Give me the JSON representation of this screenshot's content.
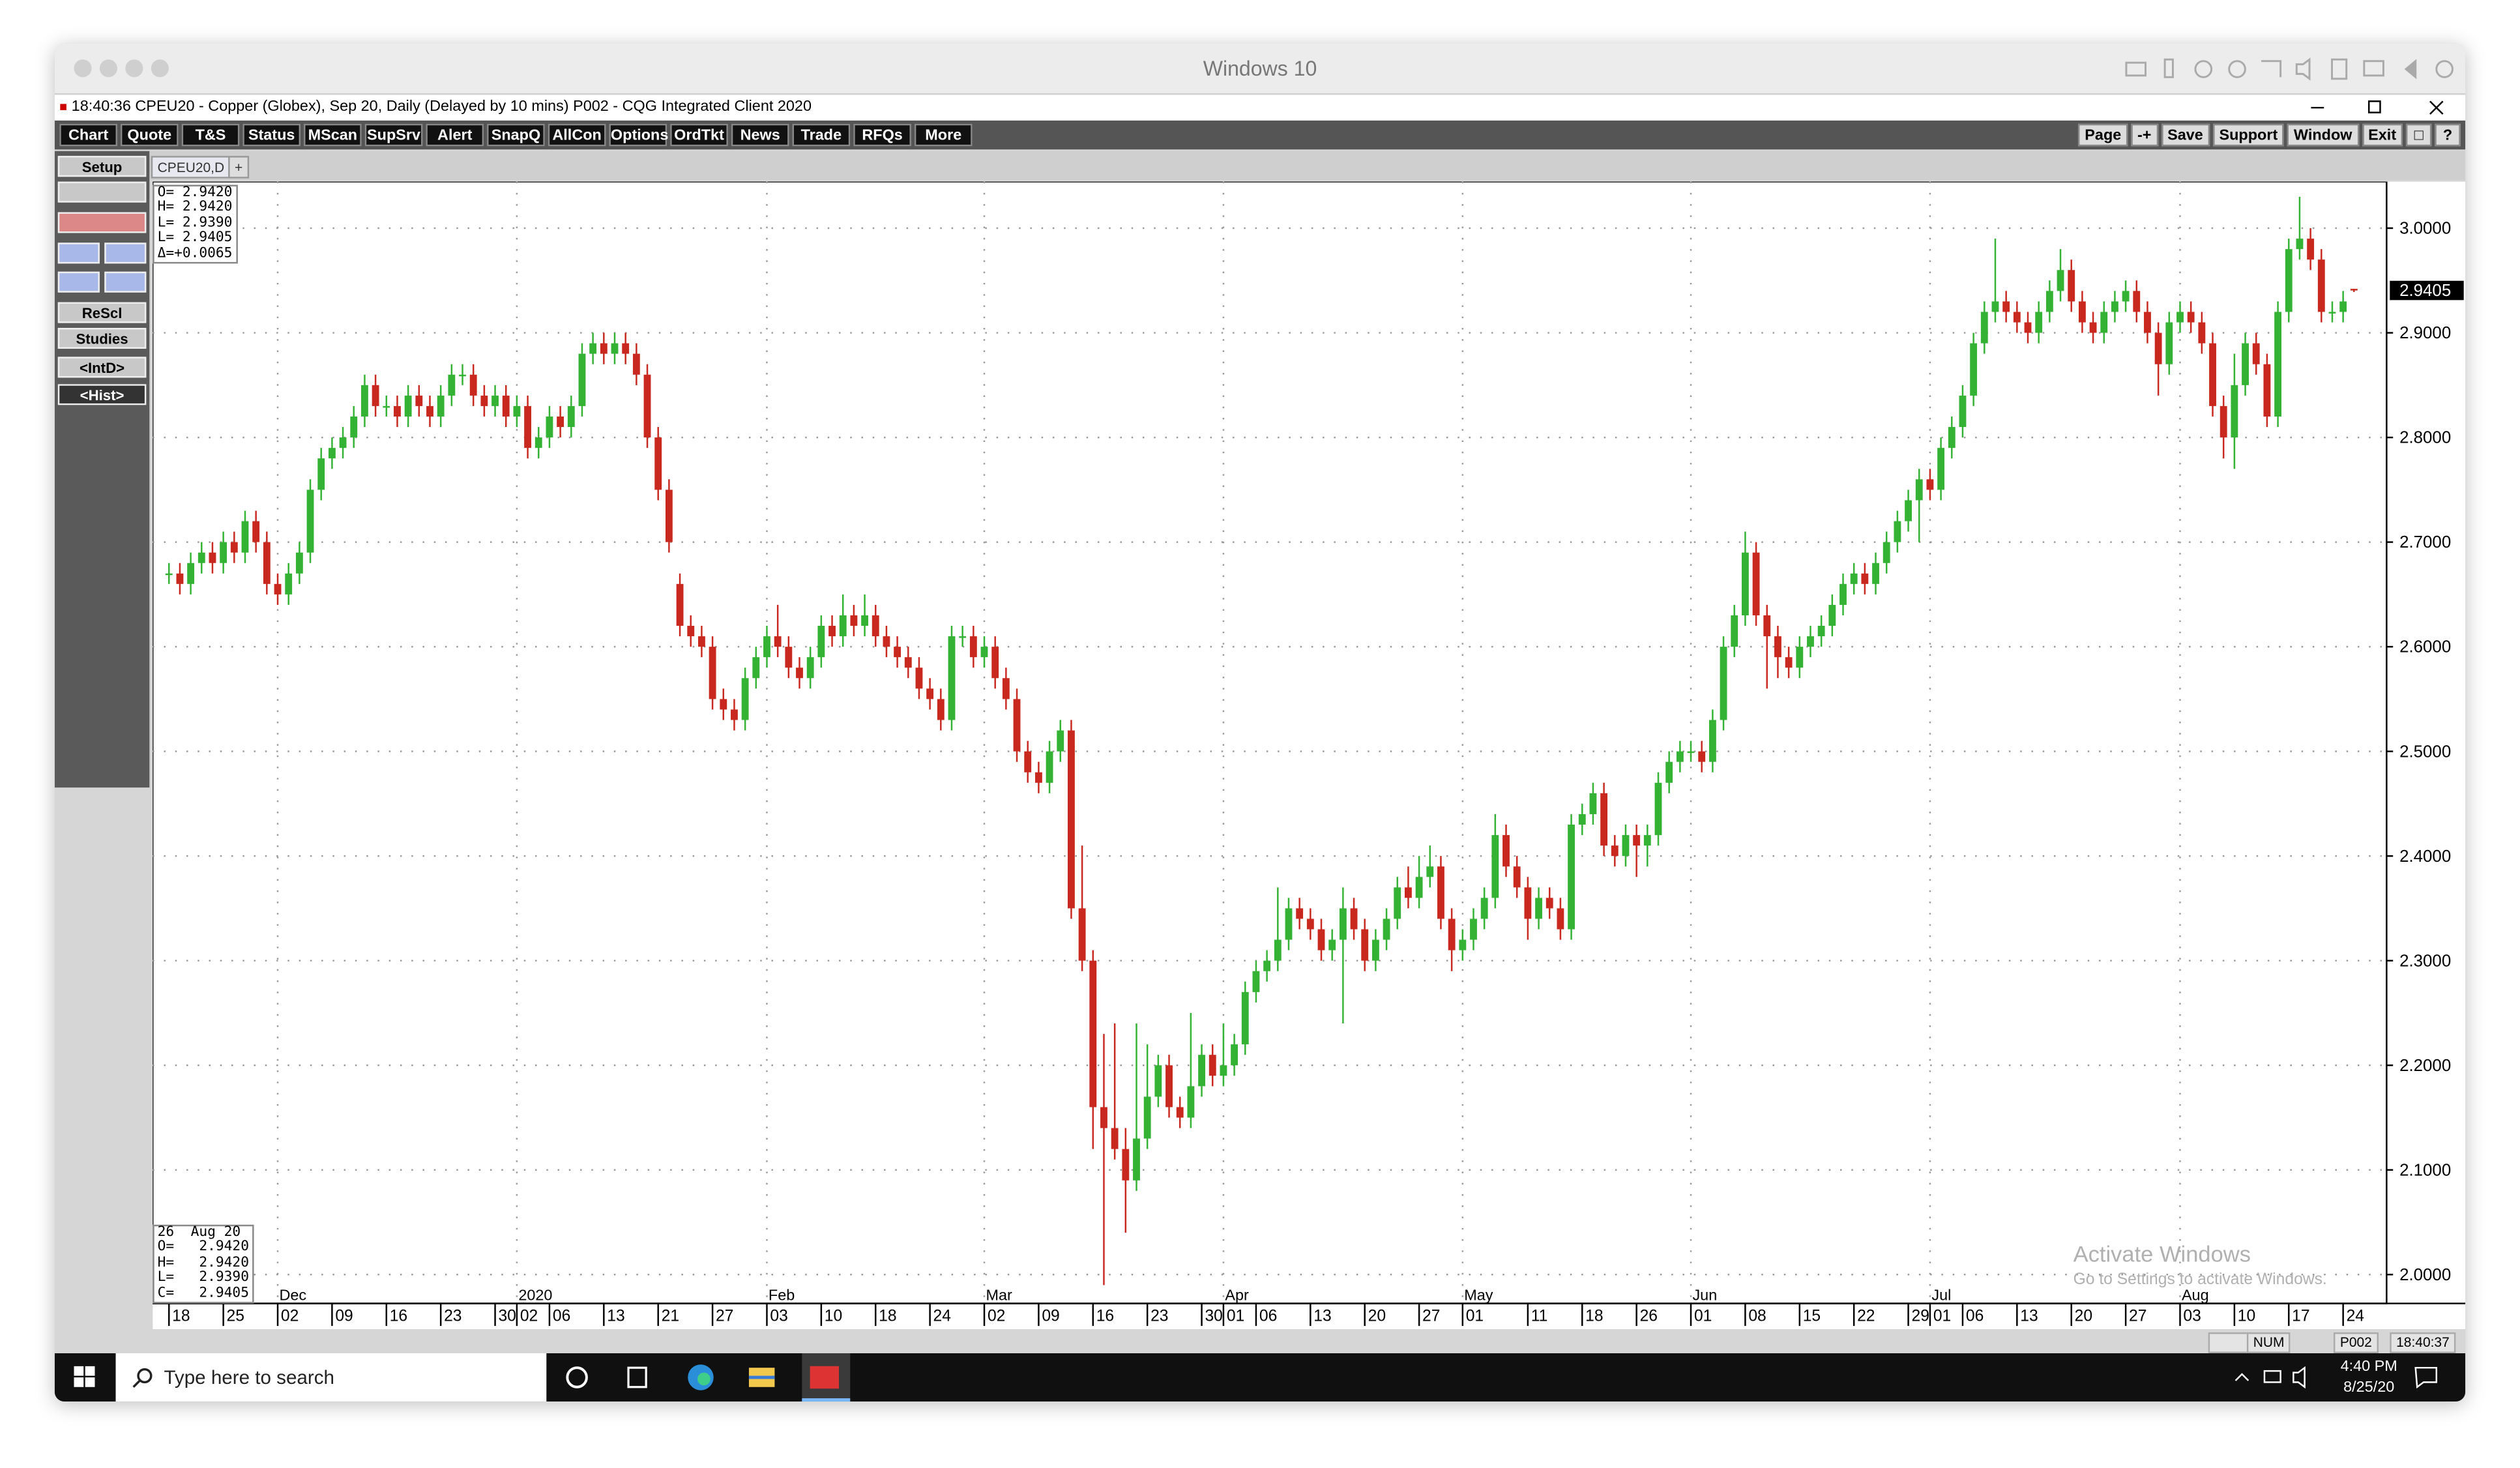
{
  "window": {
    "title": "Windows 10"
  },
  "app": {
    "title": "18:40:36  CPEU20 - Copper (Globex), Sep 20, Daily (Delayed by 10 mins)   P002 - CQG Integrated Client 2020"
  },
  "toolbar": {
    "left": [
      "Chart",
      "Quote",
      "T&S",
      "Status",
      "MScan",
      "SupSrv",
      "Alert",
      "SnapQ",
      "AllCon",
      "Options",
      "OrdTkt",
      "News",
      "Trade",
      "RFQs",
      "More"
    ],
    "right": [
      "Page",
      "-+",
      "Save",
      "Support",
      "Window",
      "Exit"
    ]
  },
  "tabs": [
    "CPEU20,D",
    "+"
  ],
  "side_buttons": [
    "Setup",
    "ReScl",
    "Studies",
    "<IntD>",
    "<Hist>"
  ],
  "readout_top": [
    "O= 2.9420",
    "H= 2.9420",
    "L= 2.9390",
    "L= 2.9405",
    "Δ=+0.0065"
  ],
  "readout_bottom": [
    "26  Aug 20",
    "O=   2.9420",
    "H=   2.9420",
    "L=   2.9390",
    "C=   2.9405"
  ],
  "chart_data": {
    "type": "candlestick",
    "open": [
      2.67,
      2.67,
      2.66,
      2.68,
      2.69,
      2.68,
      2.7,
      2.69,
      2.72,
      2.7,
      2.66,
      2.65,
      2.67,
      2.69,
      2.75,
      2.78,
      2.79,
      2.8,
      2.82,
      2.85,
      2.83,
      2.83,
      2.82,
      2.84,
      2.83,
      2.82,
      2.84,
      2.86,
      2.86,
      2.84,
      2.83,
      2.84,
      2.82,
      2.83,
      2.79,
      2.8,
      2.82,
      2.81,
      2.83,
      2.88,
      2.89,
      2.88,
      2.89,
      2.88,
      2.86,
      2.8,
      2.75,
      2.66,
      2.62,
      2.61,
      2.6,
      2.55,
      2.54,
      2.53,
      2.57,
      2.59,
      2.61,
      2.6,
      2.58,
      2.57,
      2.59,
      2.62,
      2.61,
      2.63,
      2.62,
      2.63,
      2.61,
      2.6,
      2.59,
      2.58,
      2.56,
      2.55,
      2.53,
      2.61,
      2.61,
      2.59,
      2.6,
      2.57,
      2.55,
      2.5,
      2.48,
      2.47,
      2.5,
      2.52,
      2.35,
      2.3,
      2.16,
      2.14,
      2.12,
      2.09,
      2.13,
      2.17,
      2.2,
      2.16,
      2.15,
      2.18,
      2.21,
      2.19,
      2.2,
      2.22,
      2.27,
      2.29,
      2.3,
      2.32,
      2.35,
      2.34,
      2.33,
      2.31,
      2.32,
      2.35,
      2.33,
      2.3,
      2.32,
      2.34,
      2.37,
      2.36,
      2.38,
      2.39,
      2.34,
      2.31,
      2.32,
      2.34,
      2.36,
      2.42,
      2.39,
      2.37,
      2.34,
      2.36,
      2.35,
      2.33,
      2.43,
      2.44,
      2.46,
      2.41,
      2.4,
      2.42,
      2.41,
      2.42,
      2.47,
      2.49,
      2.5,
      2.5,
      2.49,
      2.53,
      2.6,
      2.63,
      2.69,
      2.63,
      2.61,
      2.59,
      2.58,
      2.6,
      2.61,
      2.62,
      2.64,
      2.66,
      2.67,
      2.66,
      2.68,
      2.7,
      2.72,
      2.74,
      2.76,
      2.75,
      2.79,
      2.81,
      2.84,
      2.89,
      2.92,
      2.93,
      2.92,
      2.91,
      2.9,
      2.92,
      2.94,
      2.96,
      2.93,
      2.91,
      2.9,
      2.92,
      2.93,
      2.94,
      2.92,
      2.9,
      2.87,
      2.91,
      2.92,
      2.91,
      2.89,
      2.83,
      2.8,
      2.85,
      2.89,
      2.87,
      2.82,
      2.92,
      2.98,
      2.99,
      2.97,
      2.92,
      2.92,
      2.942
    ],
    "high": [
      2.68,
      2.68,
      2.69,
      2.7,
      2.7,
      2.71,
      2.71,
      2.73,
      2.73,
      2.71,
      2.67,
      2.68,
      2.7,
      2.76,
      2.79,
      2.8,
      2.81,
      2.83,
      2.86,
      2.86,
      2.84,
      2.84,
      2.85,
      2.85,
      2.84,
      2.85,
      2.87,
      2.87,
      2.87,
      2.85,
      2.85,
      2.85,
      2.84,
      2.84,
      2.81,
      2.83,
      2.83,
      2.84,
      2.89,
      2.9,
      2.9,
      2.9,
      2.9,
      2.89,
      2.87,
      2.81,
      2.76,
      2.67,
      2.63,
      2.62,
      2.61,
      2.56,
      2.55,
      2.58,
      2.6,
      2.62,
      2.64,
      2.61,
      2.59,
      2.6,
      2.63,
      2.63,
      2.65,
      2.64,
      2.65,
      2.64,
      2.62,
      2.61,
      2.6,
      2.59,
      2.57,
      2.56,
      2.62,
      2.62,
      2.62,
      2.61,
      2.61,
      2.58,
      2.56,
      2.51,
      2.49,
      2.51,
      2.53,
      2.53,
      2.41,
      2.31,
      2.23,
      2.24,
      2.14,
      2.24,
      2.22,
      2.21,
      2.21,
      2.17,
      2.25,
      2.22,
      2.22,
      2.24,
      2.23,
      2.28,
      2.3,
      2.31,
      2.37,
      2.36,
      2.36,
      2.35,
      2.34,
      2.33,
      2.37,
      2.36,
      2.34,
      2.33,
      2.35,
      2.38,
      2.39,
      2.4,
      2.41,
      2.4,
      2.35,
      2.33,
      2.35,
      2.37,
      2.44,
      2.43,
      2.4,
      2.38,
      2.37,
      2.37,
      2.36,
      2.44,
      2.45,
      2.47,
      2.47,
      2.42,
      2.43,
      2.43,
      2.43,
      2.48,
      2.5,
      2.51,
      2.51,
      2.51,
      2.54,
      2.61,
      2.64,
      2.71,
      2.7,
      2.64,
      2.62,
      2.6,
      2.61,
      2.62,
      2.63,
      2.65,
      2.67,
      2.68,
      2.68,
      2.69,
      2.71,
      2.73,
      2.75,
      2.77,
      2.77,
      2.8,
      2.82,
      2.85,
      2.9,
      2.93,
      2.99,
      2.94,
      2.93,
      2.92,
      2.93,
      2.95,
      2.98,
      2.97,
      2.94,
      2.92,
      2.93,
      2.94,
      2.95,
      2.95,
      2.93,
      2.91,
      2.92,
      2.93,
      2.93,
      2.92,
      2.9,
      2.84,
      2.88,
      2.9,
      2.9,
      2.88,
      2.93,
      2.99,
      3.03,
      3.0,
      2.98,
      2.93,
      2.94,
      2.942
    ],
    "low": [
      2.66,
      2.65,
      2.65,
      2.67,
      2.67,
      2.67,
      2.68,
      2.68,
      2.69,
      2.65,
      2.64,
      2.64,
      2.66,
      2.68,
      2.74,
      2.77,
      2.78,
      2.79,
      2.81,
      2.82,
      2.82,
      2.81,
      2.81,
      2.82,
      2.81,
      2.81,
      2.83,
      2.85,
      2.83,
      2.82,
      2.82,
      2.81,
      2.81,
      2.78,
      2.78,
      2.79,
      2.8,
      2.8,
      2.82,
      2.87,
      2.87,
      2.87,
      2.87,
      2.85,
      2.79,
      2.74,
      2.69,
      2.61,
      2.6,
      2.59,
      2.54,
      2.53,
      2.52,
      2.52,
      2.56,
      2.58,
      2.59,
      2.57,
      2.56,
      2.56,
      2.58,
      2.6,
      2.6,
      2.61,
      2.61,
      2.6,
      2.59,
      2.58,
      2.57,
      2.55,
      2.54,
      2.52,
      2.52,
      2.6,
      2.58,
      2.58,
      2.56,
      2.54,
      2.49,
      2.47,
      2.46,
      2.46,
      2.49,
      2.34,
      2.29,
      2.12,
      1.99,
      2.11,
      2.04,
      2.08,
      2.12,
      2.16,
      2.15,
      2.14,
      2.14,
      2.17,
      2.18,
      2.18,
      2.19,
      2.21,
      2.26,
      2.28,
      2.29,
      2.31,
      2.33,
      2.32,
      2.3,
      2.3,
      2.24,
      2.32,
      2.29,
      2.29,
      2.31,
      2.33,
      2.35,
      2.35,
      2.37,
      2.33,
      2.29,
      2.3,
      2.31,
      2.33,
      2.35,
      2.38,
      2.36,
      2.32,
      2.33,
      2.34,
      2.32,
      2.32,
      2.42,
      2.43,
      2.4,
      2.39,
      2.39,
      2.38,
      2.39,
      2.41,
      2.46,
      2.48,
      2.49,
      2.48,
      2.48,
      2.52,
      2.59,
      2.62,
      2.62,
      2.56,
      2.57,
      2.57,
      2.57,
      2.59,
      2.6,
      2.61,
      2.63,
      2.65,
      2.65,
      2.65,
      2.67,
      2.69,
      2.71,
      2.7,
      2.74,
      2.74,
      2.78,
      2.8,
      2.83,
      2.88,
      2.91,
      2.91,
      2.9,
      2.89,
      2.89,
      2.91,
      2.93,
      2.92,
      2.9,
      2.89,
      2.89,
      2.91,
      2.92,
      2.91,
      2.89,
      2.84,
      2.86,
      2.9,
      2.9,
      2.88,
      2.82,
      2.78,
      2.77,
      2.84,
      2.86,
      2.81,
      2.81,
      2.91,
      2.97,
      2.96,
      2.91,
      2.91,
      2.91,
      2.939
    ],
    "close": [
      2.67,
      2.66,
      2.68,
      2.69,
      2.68,
      2.7,
      2.69,
      2.72,
      2.7,
      2.66,
      2.65,
      2.67,
      2.69,
      2.75,
      2.78,
      2.79,
      2.8,
      2.82,
      2.85,
      2.83,
      2.83,
      2.82,
      2.84,
      2.83,
      2.82,
      2.84,
      2.86,
      2.86,
      2.84,
      2.83,
      2.84,
      2.82,
      2.83,
      2.79,
      2.8,
      2.82,
      2.81,
      2.83,
      2.88,
      2.89,
      2.88,
      2.89,
      2.88,
      2.86,
      2.8,
      2.75,
      2.7,
      2.62,
      2.61,
      2.6,
      2.55,
      2.54,
      2.53,
      2.57,
      2.59,
      2.61,
      2.6,
      2.58,
      2.57,
      2.59,
      2.62,
      2.61,
      2.63,
      2.62,
      2.63,
      2.61,
      2.6,
      2.59,
      2.58,
      2.56,
      2.55,
      2.53,
      2.61,
      2.61,
      2.59,
      2.6,
      2.57,
      2.55,
      2.5,
      2.48,
      2.47,
      2.5,
      2.52,
      2.35,
      2.3,
      2.16,
      2.14,
      2.12,
      2.09,
      2.13,
      2.17,
      2.2,
      2.16,
      2.15,
      2.18,
      2.21,
      2.19,
      2.2,
      2.22,
      2.27,
      2.29,
      2.3,
      2.32,
      2.35,
      2.34,
      2.33,
      2.31,
      2.32,
      2.35,
      2.33,
      2.3,
      2.32,
      2.34,
      2.37,
      2.36,
      2.38,
      2.39,
      2.34,
      2.31,
      2.32,
      2.34,
      2.36,
      2.42,
      2.39,
      2.37,
      2.34,
      2.36,
      2.35,
      2.33,
      2.43,
      2.44,
      2.46,
      2.41,
      2.4,
      2.42,
      2.41,
      2.42,
      2.47,
      2.49,
      2.5,
      2.5,
      2.49,
      2.53,
      2.6,
      2.63,
      2.69,
      2.63,
      2.61,
      2.59,
      2.58,
      2.6,
      2.61,
      2.62,
      2.64,
      2.66,
      2.67,
      2.66,
      2.68,
      2.7,
      2.72,
      2.74,
      2.76,
      2.75,
      2.79,
      2.81,
      2.84,
      2.89,
      2.92,
      2.93,
      2.92,
      2.91,
      2.9,
      2.92,
      2.94,
      2.96,
      2.93,
      2.91,
      2.9,
      2.92,
      2.93,
      2.94,
      2.92,
      2.9,
      2.87,
      2.91,
      2.92,
      2.91,
      2.89,
      2.83,
      2.8,
      2.85,
      2.89,
      2.87,
      2.82,
      2.92,
      2.98,
      2.99,
      2.97,
      2.92,
      2.92,
      2.93,
      2.9405
    ],
    "up_color": "#33b233",
    "down_color": "#c8281e",
    "last_label": "2.9405",
    "xlim": [
      -1.5,
      204
    ],
    "xticks": [
      {
        "value": 0,
        "label": "18"
      },
      {
        "value": 5,
        "label": "25"
      },
      {
        "value": 10,
        "label": "02"
      },
      {
        "value": 15,
        "label": "09"
      },
      {
        "value": 20,
        "label": "16"
      },
      {
        "value": 25,
        "label": "23"
      },
      {
        "value": 30,
        "label": "30"
      },
      {
        "value": 32,
        "label": "02"
      },
      {
        "value": 35,
        "label": "06"
      },
      {
        "value": 40,
        "label": "13"
      },
      {
        "value": 45,
        "label": "21"
      },
      {
        "value": 50,
        "label": "27"
      },
      {
        "value": 55,
        "label": "03"
      },
      {
        "value": 60,
        "label": "10"
      },
      {
        "value": 65,
        "label": "18"
      },
      {
        "value": 70,
        "label": "24"
      },
      {
        "value": 75,
        "label": "02"
      },
      {
        "value": 80,
        "label": "09"
      },
      {
        "value": 85,
        "label": "16"
      },
      {
        "value": 90,
        "label": "23"
      },
      {
        "value": 95,
        "label": "30"
      },
      {
        "value": 97,
        "label": "01"
      },
      {
        "value": 100,
        "label": "06"
      },
      {
        "value": 105,
        "label": "13"
      },
      {
        "value": 110,
        "label": "20"
      },
      {
        "value": 115,
        "label": "27"
      },
      {
        "value": 119,
        "label": "01"
      },
      {
        "value": 125,
        "label": "11"
      },
      {
        "value": 130,
        "label": "18"
      },
      {
        "value": 135,
        "label": "26"
      },
      {
        "value": 140,
        "label": "01"
      },
      {
        "value": 145,
        "label": "08"
      },
      {
        "value": 150,
        "label": "15"
      },
      {
        "value": 155,
        "label": "22"
      },
      {
        "value": 160,
        "label": "29"
      },
      {
        "value": 162,
        "label": "01"
      },
      {
        "value": 165,
        "label": "06"
      },
      {
        "value": 170,
        "label": "13"
      },
      {
        "value": 175,
        "label": "20"
      },
      {
        "value": 180,
        "label": "27"
      },
      {
        "value": 185,
        "label": "03"
      },
      {
        "value": 190,
        "label": "10"
      },
      {
        "value": 195,
        "label": "17"
      },
      {
        "value": 200,
        "label": "24"
      }
    ],
    "month_labels": [
      {
        "value": 10,
        "label": "Dec"
      },
      {
        "value": 32,
        "label": "2020"
      },
      {
        "value": 55,
        "label": "Feb"
      },
      {
        "value": 75,
        "label": "Mar"
      },
      {
        "value": 97,
        "label": "Apr"
      },
      {
        "value": 119,
        "label": "May"
      },
      {
        "value": 140,
        "label": "Jun"
      },
      {
        "value": 162,
        "label": "Jul"
      },
      {
        "value": 185,
        "label": "Aug"
      }
    ],
    "ylim": [
      1.9724,
      3.0445
    ],
    "yticks": [
      {
        "value": 2,
        "label": "2.0000"
      },
      {
        "value": 2.1,
        "label": "2.1000"
      },
      {
        "value": 2.2,
        "label": "2.2000"
      },
      {
        "value": 2.3,
        "label": "2.3000"
      },
      {
        "value": 2.4,
        "label": "2.4000"
      },
      {
        "value": 2.5,
        "label": "2.5000"
      },
      {
        "value": 2.6,
        "label": "2.6000"
      },
      {
        "value": 2.7,
        "label": "2.7000"
      },
      {
        "value": 2.8,
        "label": "2.8000"
      },
      {
        "value": 2.9,
        "label": "2.9000"
      },
      {
        "value": 3,
        "label": "3.0000"
      }
    ],
    "grid": true
  },
  "status": [
    "NUM",
    "P002",
    "18:40:37"
  ],
  "watermark": [
    "Activate Windows",
    "Go to Settings to activate Windows."
  ],
  "taskbar": {
    "search": "Type here to search",
    "time": "4:40 PM",
    "date": "8/25/20"
  }
}
